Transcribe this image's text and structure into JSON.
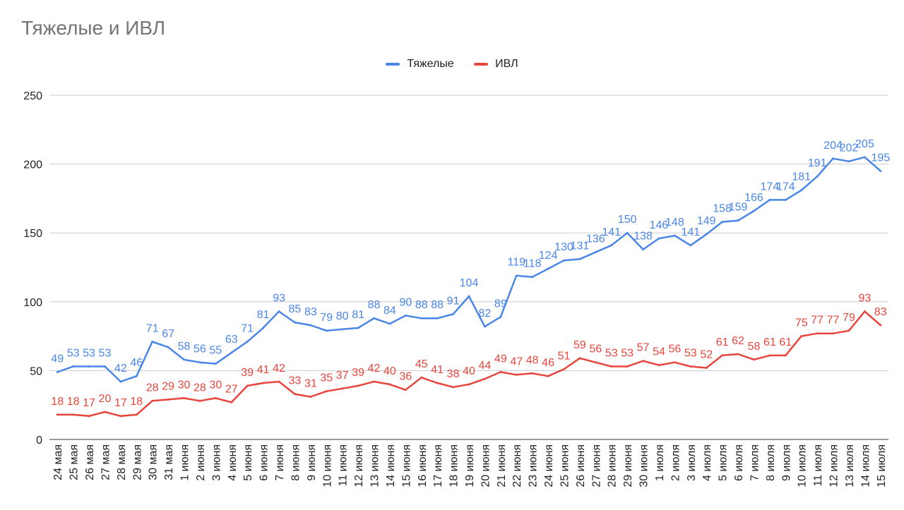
{
  "title": "Тяжелые и ИВЛ",
  "chart_data": {
    "type": "line",
    "title": "Тяжелые и ИВЛ",
    "xlabel": "",
    "ylabel": "",
    "ylim": [
      0,
      250
    ],
    "yticks": [
      0,
      50,
      100,
      150,
      200,
      250
    ],
    "grid": true,
    "legend_position": "top",
    "categories": [
      "24 мая",
      "25 мая",
      "26 мая",
      "27 мая",
      "28 мая",
      "29 мая",
      "30 мая",
      "31 мая",
      "1 июня",
      "2 июня",
      "3 июня",
      "4 июня",
      "5 июня",
      "6 июня",
      "7 июня",
      "8 июня",
      "9 июня",
      "10 июня",
      "11 июня",
      "12 июня",
      "13 июня",
      "14 июня",
      "15 июня",
      "16 июня",
      "17 июня",
      "18 июня",
      "19 июня",
      "20 июня",
      "21 июня",
      "22 июня",
      "23 июня",
      "24 июня",
      "25 июня",
      "26 июня",
      "27 июня",
      "28 июня",
      "29 июня",
      "30 июня",
      "1 июля",
      "2 июля",
      "3 июля",
      "4 июля",
      "5 июля",
      "6 июля",
      "7 июля",
      "8 июля",
      "9 июля",
      "10 июля",
      "11 июля",
      "12 июля",
      "13 июля",
      "14 июля",
      "15 июля"
    ],
    "series": [
      {
        "name": "Тяжелые",
        "color": "#4a86e8",
        "values": [
          49,
          53,
          53,
          53,
          42,
          46,
          71,
          67,
          58,
          56,
          55,
          63,
          71,
          81,
          93,
          85,
          83,
          79,
          80,
          81,
          88,
          84,
          90,
          88,
          88,
          91,
          104,
          82,
          89,
          119,
          118,
          124,
          130,
          131,
          136,
          141,
          150,
          138,
          146,
          148,
          141,
          149,
          158,
          159,
          166,
          174,
          174,
          181,
          191,
          204,
          202,
          205,
          195
        ]
      },
      {
        "name": "ИВЛ",
        "color": "#e8453c",
        "values": [
          18,
          18,
          17,
          20,
          17,
          18,
          28,
          29,
          30,
          28,
          30,
          27,
          39,
          41,
          42,
          33,
          31,
          35,
          37,
          39,
          42,
          40,
          36,
          45,
          41,
          38,
          40,
          44,
          49,
          47,
          48,
          46,
          51,
          59,
          56,
          53,
          53,
          57,
          54,
          56,
          53,
          52,
          61,
          62,
          58,
          61,
          61,
          75,
          77,
          77,
          79,
          93,
          83
        ]
      }
    ]
  }
}
